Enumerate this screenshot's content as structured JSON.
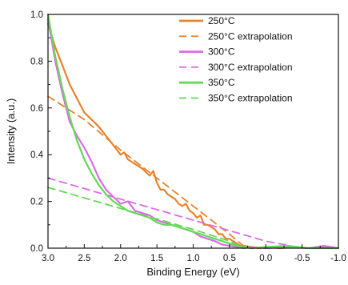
{
  "chart_data": {
    "type": "line",
    "xlabel": "Binding Energy (eV)",
    "ylabel": "Intensity (a.u.)",
    "xlim": [
      3.0,
      -1.0
    ],
    "ylim": [
      0.0,
      1.0
    ],
    "x_reversed": true,
    "x_ticks": [
      "3.0",
      "2.5",
      "2.0",
      "1.5",
      "1.0",
      "0.5",
      "0.0",
      "-0.5",
      "-1.0"
    ],
    "x_tick_values": [
      3.0,
      2.5,
      2.0,
      1.5,
      1.0,
      0.5,
      0.0,
      -0.5,
      -1.0
    ],
    "y_ticks": [
      "0.0",
      "0.2",
      "0.4",
      "0.6",
      "0.8",
      "1.0"
    ],
    "y_tick_values": [
      0.0,
      0.2,
      0.4,
      0.6,
      0.8,
      1.0
    ],
    "grid": false,
    "legend_position": "top-right",
    "series": [
      {
        "name": "250°C",
        "style": "solid",
        "color": "#e8822c",
        "x": [
          3.0,
          2.9,
          2.8,
          2.7,
          2.6,
          2.5,
          2.4,
          2.3,
          2.2,
          2.1,
          2.0,
          1.95,
          1.9,
          1.85,
          1.8,
          1.7,
          1.6,
          1.55,
          1.5,
          1.45,
          1.4,
          1.35,
          1.3,
          1.25,
          1.2,
          1.15,
          1.1,
          1.05,
          1.0,
          0.95,
          0.9,
          0.85,
          0.8,
          0.75,
          0.7,
          0.65,
          0.6,
          0.55,
          0.5,
          0.45,
          0.4,
          0.35,
          0.3,
          0.2,
          0.1,
          0.0,
          -0.2,
          -0.4,
          -0.6,
          -0.8,
          -1.0
        ],
        "y": [
          0.96,
          0.86,
          0.78,
          0.7,
          0.64,
          0.58,
          0.55,
          0.52,
          0.48,
          0.44,
          0.4,
          0.41,
          0.38,
          0.37,
          0.36,
          0.34,
          0.31,
          0.33,
          0.28,
          0.25,
          0.25,
          0.23,
          0.22,
          0.21,
          0.19,
          0.18,
          0.19,
          0.16,
          0.15,
          0.13,
          0.14,
          0.1,
          0.1,
          0.09,
          0.08,
          0.06,
          0.06,
          0.04,
          0.04,
          0.03,
          0.02,
          0.01,
          0.01,
          0.005,
          0.0,
          0.005,
          0.0,
          0.005,
          0.0,
          0.005,
          0.0
        ]
      },
      {
        "name": "250°C extrapolation",
        "style": "dashed",
        "color": "#e8822c",
        "x": [
          3.0,
          2.5,
          2.0,
          1.5,
          1.0,
          0.5,
          0.27
        ],
        "y": [
          0.65,
          0.55,
          0.42,
          0.3,
          0.18,
          0.06,
          0.0
        ]
      },
      {
        "name": "300°C",
        "style": "solid",
        "color": "#dd6be8",
        "x": [
          3.0,
          2.9,
          2.8,
          2.7,
          2.6,
          2.5,
          2.4,
          2.3,
          2.2,
          2.1,
          2.0,
          1.9,
          1.8,
          1.7,
          1.6,
          1.5,
          1.4,
          1.3,
          1.2,
          1.1,
          1.0,
          0.9,
          0.8,
          0.7,
          0.6,
          0.5,
          0.4,
          0.3,
          0.2,
          0.0,
          -0.3,
          -0.6,
          -0.8,
          -1.0
        ],
        "y": [
          0.98,
          0.8,
          0.66,
          0.54,
          0.48,
          0.43,
          0.37,
          0.3,
          0.25,
          0.22,
          0.19,
          0.2,
          0.16,
          0.15,
          0.14,
          0.12,
          0.11,
          0.1,
          0.09,
          0.08,
          0.07,
          0.05,
          0.04,
          0.03,
          0.015,
          0.01,
          0.005,
          0.0,
          0.005,
          0.0,
          0.005,
          0.0,
          0.01,
          0.0
        ]
      },
      {
        "name": "300°C  extrapolation",
        "style": "dashed",
        "color": "#dd6be8",
        "x": [
          3.0,
          2.0,
          1.0,
          0.0,
          -0.5
        ],
        "y": [
          0.3,
          0.21,
          0.12,
          0.03,
          0.0
        ]
      },
      {
        "name": "350°C",
        "style": "solid",
        "color": "#63d955",
        "x": [
          3.0,
          2.9,
          2.8,
          2.7,
          2.6,
          2.5,
          2.4,
          2.3,
          2.2,
          2.1,
          2.0,
          1.9,
          1.8,
          1.7,
          1.6,
          1.5,
          1.4,
          1.3,
          1.2,
          1.1,
          1.0,
          0.9,
          0.8,
          0.7,
          0.6,
          0.5,
          0.4,
          0.3,
          0.2,
          0.0,
          -0.3,
          -0.6,
          -1.0
        ],
        "y": [
          1.0,
          0.82,
          0.68,
          0.56,
          0.46,
          0.38,
          0.32,
          0.27,
          0.23,
          0.2,
          0.18,
          0.16,
          0.15,
          0.14,
          0.13,
          0.11,
          0.1,
          0.1,
          0.09,
          0.08,
          0.07,
          0.06,
          0.05,
          0.04,
          0.03,
          0.02,
          0.01,
          0.005,
          0.0,
          0.005,
          0.01,
          0.0,
          0.0
        ]
      },
      {
        "name": "350°C extrapolation",
        "style": "dashed",
        "color": "#63d955",
        "x": [
          3.0,
          2.0,
          1.0,
          0.5,
          0.3
        ],
        "y": [
          0.26,
          0.17,
          0.08,
          0.03,
          0.0
        ]
      }
    ]
  }
}
